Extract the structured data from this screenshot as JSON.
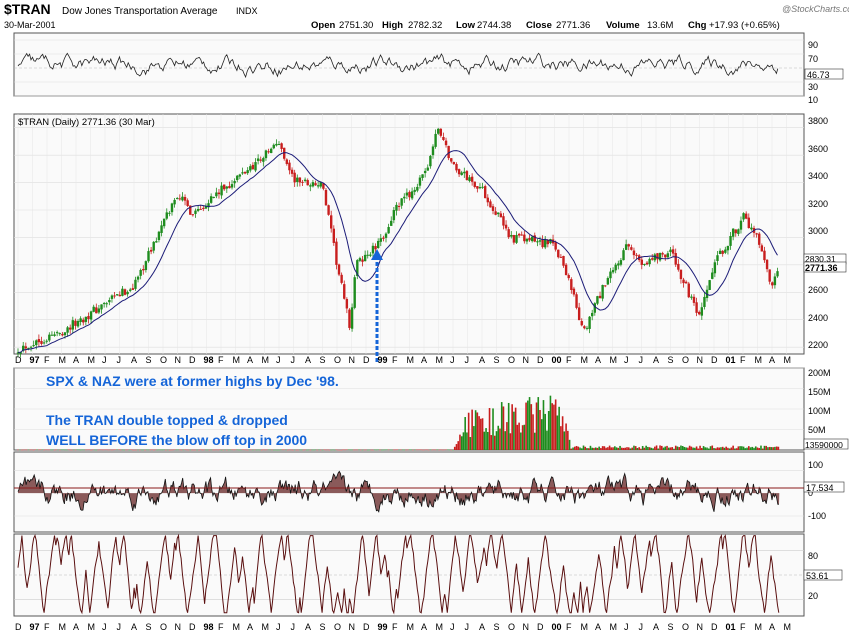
{
  "header": {
    "symbol": "$TRAN",
    "name": "Dow Jones Transportation Average",
    "exchange": "INDX",
    "date": "30-Mar-2001",
    "open_label": "Open",
    "open": "2751.30",
    "high_label": "High",
    "high": "2782.32",
    "low_label": "Low",
    "low": "2744.38",
    "close_label": "Close",
    "close": "2771.36",
    "volume_label": "Volume",
    "volume": "13.6M",
    "chg_label": "Chg",
    "chg": "+17.93 (+0.65%)",
    "logo": "@StockCharts.com"
  },
  "price_legend": "$TRAN (Daily) 2771.36 (30 Mar)",
  "annotations": [
    "SPX & NAZ were at former highs by Dec '98.",
    "The TRAN  double topped & dropped",
    "WELL BEFORE the blow off top in 2000"
  ],
  "colors": {
    "up": "#1e8c1e",
    "down": "#c81e1e",
    "ma": "#1c1c78",
    "annotation": "#1565d8",
    "oscillator_fill": "#8a5a5a",
    "panel_bg": "#fafafa"
  },
  "chart_data": [
    {
      "type": "line",
      "panel": "rsi",
      "ylim": [
        10,
        100
      ],
      "y_ticks": [
        "90",
        "70",
        "50",
        "30",
        "10"
      ],
      "last_value": "46.73"
    },
    {
      "type": "candlestick",
      "panel": "price",
      "ylim": [
        2150,
        3900
      ],
      "y_ticks": [
        "3800",
        "3600",
        "3400",
        "3200",
        "3000",
        "2800",
        "2600",
        "2400",
        "2200"
      ],
      "ma_value": "2830.31",
      "last_value": "2771.36",
      "x_month_labels": [
        "D",
        "97",
        "F",
        "M",
        "A",
        "M",
        "J",
        "J",
        "A",
        "S",
        "O",
        "N",
        "D",
        "98",
        "F",
        "M",
        "A",
        "M",
        "J",
        "J",
        "A",
        "S",
        "O",
        "N",
        "D",
        "99",
        "F",
        "M",
        "A",
        "M",
        "J",
        "J",
        "A",
        "S",
        "O",
        "N",
        "D",
        "00",
        "F",
        "M",
        "A",
        "M",
        "J",
        "J",
        "A",
        "S",
        "O",
        "N",
        "D",
        "01",
        "F",
        "M",
        "A",
        "M"
      ],
      "anchors": [
        {
          "t": 0,
          "v": 2190
        },
        {
          "t": 3,
          "v": 2310
        },
        {
          "t": 8,
          "v": 2650
        },
        {
          "t": 11,
          "v": 3320
        },
        {
          "t": 12,
          "v": 3180
        },
        {
          "t": 15,
          "v": 3420
        },
        {
          "t": 18,
          "v": 3690
        },
        {
          "t": 19,
          "v": 3420
        },
        {
          "t": 21,
          "v": 3380
        },
        {
          "t": 22,
          "v": 2800
        },
        {
          "t": 22.9,
          "v": 2340
        },
        {
          "t": 23.3,
          "v": 2800
        },
        {
          "t": 25,
          "v": 2960
        },
        {
          "t": 26,
          "v": 3200
        },
        {
          "t": 28,
          "v": 3440
        },
        {
          "t": 29,
          "v": 3800
        },
        {
          "t": 30,
          "v": 3520
        },
        {
          "t": 32,
          "v": 3350
        },
        {
          "t": 34,
          "v": 3000
        },
        {
          "t": 37,
          "v": 2950
        },
        {
          "t": 38,
          "v": 2700
        },
        {
          "t": 39,
          "v": 2290
        },
        {
          "t": 40,
          "v": 2560
        },
        {
          "t": 42,
          "v": 2930
        },
        {
          "t": 43,
          "v": 2820
        },
        {
          "t": 45,
          "v": 2900
        },
        {
          "t": 47,
          "v": 2400
        },
        {
          "t": 48,
          "v": 2800
        },
        {
          "t": 50,
          "v": 3150
        },
        {
          "t": 51,
          "v": 2980
        },
        {
          "t": 52,
          "v": 2620
        },
        {
          "t": 52.5,
          "v": 2771
        }
      ]
    },
    {
      "type": "bar",
      "panel": "volume",
      "ylim": [
        0,
        200
      ],
      "y_ticks": [
        "200M",
        "150M",
        "100M",
        "50M"
      ],
      "last_value": "13590000",
      "levels": [
        {
          "t": 0,
          "v": 1
        },
        {
          "t": 30,
          "v": 1
        },
        {
          "t": 31,
          "v": 80
        },
        {
          "t": 36,
          "v": 110
        },
        {
          "t": 38,
          "v": 100
        },
        {
          "t": 38.1,
          "v": 9
        },
        {
          "t": 52.5,
          "v": 9
        }
      ]
    },
    {
      "type": "area",
      "panel": "oscillator",
      "ylim": [
        -170,
        180
      ],
      "y_ticks": [
        "100",
        "0",
        "-100"
      ],
      "last_value": "17.534"
    },
    {
      "type": "line",
      "panel": "stochastic",
      "ylim": [
        0,
        100
      ],
      "y_ticks": [
        "80",
        "50",
        "20"
      ],
      "last_value": "53.61"
    }
  ]
}
